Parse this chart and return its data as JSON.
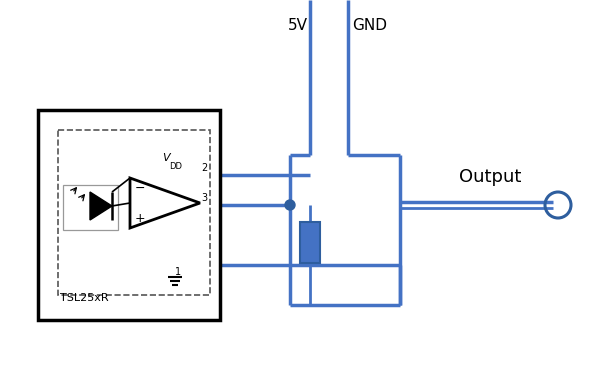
{
  "bg_color": "#ffffff",
  "line_color": "#4472C4",
  "line_color_dark": "#2E5E9E",
  "ic_box_color": "#000000",
  "label_5v": "5V",
  "label_gnd": "GND",
  "label_output": "Output",
  "label_vdd": "V",
  "label_vdd_sub": "DD",
  "label_tsl": "TSL25xR",
  "label_2": "2",
  "label_3": "3",
  "label_1": "1"
}
